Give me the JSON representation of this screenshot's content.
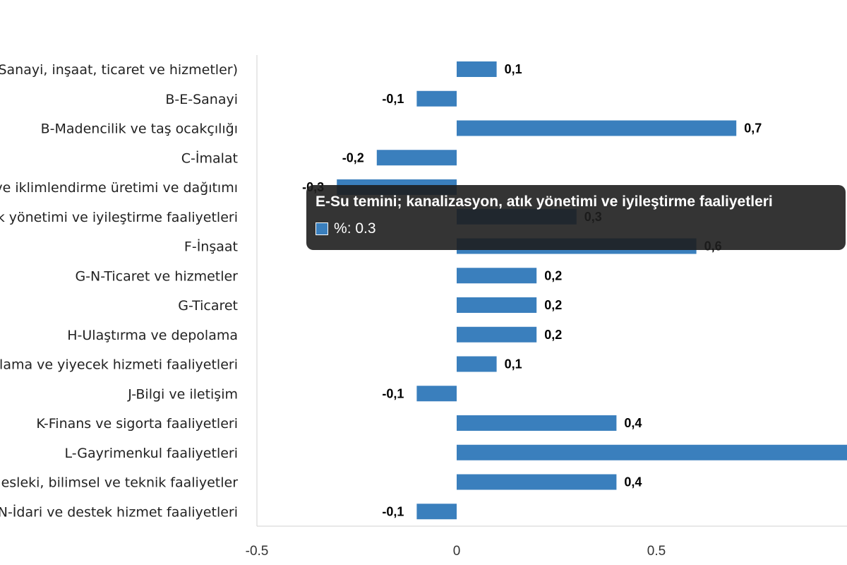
{
  "chart_data": {
    "type": "bar",
    "orientation": "horizontal",
    "categories": [
      "B-S-Toplam (Sanayi, inşaat, ticaret ve hizmetler)",
      "B-E-Sanayi",
      "B-Madencilik ve taş ocakçılığı",
      "C-İmalat",
      "D-Elektrik, gaz, buhar ve iklimlendirme üretimi ve dağıtımı",
      "E-Su temini; kanalizasyon, atık yönetimi ve iyileştirme faaliyetleri",
      "F-İnşaat",
      "G-N-Ticaret ve hizmetler",
      "G-Ticaret",
      "H-Ulaştırma ve depolama",
      "I-Konaklama ve yiyecek hizmeti faaliyetleri",
      "J-Bilgi ve iletişim",
      "K-Finans ve sigorta faaliyetleri",
      "L-Gayrimenkul faaliyetleri",
      "M-Mesleki, bilimsel ve teknik faaliyetler",
      "N-İdari ve destek hizmet faaliyetleri"
    ],
    "values": [
      0.1,
      -0.1,
      0.7,
      -0.2,
      -0.3,
      0.3,
      0.6,
      0.2,
      0.2,
      0.2,
      0.1,
      -0.1,
      0.4,
      1.0,
      0.4,
      -0.1
    ],
    "data_labels": [
      "0,1",
      "-0,1",
      "0,7",
      "-0,2",
      "-0,3",
      "0,3",
      "0,6",
      "0,2",
      "0,2",
      "0,2",
      "0,1",
      "-0,1",
      "0,4",
      "",
      "0,4",
      "-0,1"
    ],
    "xlim": [
      -0.5,
      1.0
    ],
    "x_ticks": [
      -0.5,
      0,
      0.5
    ],
    "x_tick_labels": [
      "-0.5",
      "0",
      "0.5"
    ],
    "grid": false,
    "color": "#3a7fbd"
  },
  "tooltip": {
    "title": "E-Su temini; kanalizasyon, atık yönetimi ve iyileştirme faaliyetleri",
    "series_label": "%",
    "value_text": "0.3",
    "swatch_color": "#3a7fbd"
  }
}
